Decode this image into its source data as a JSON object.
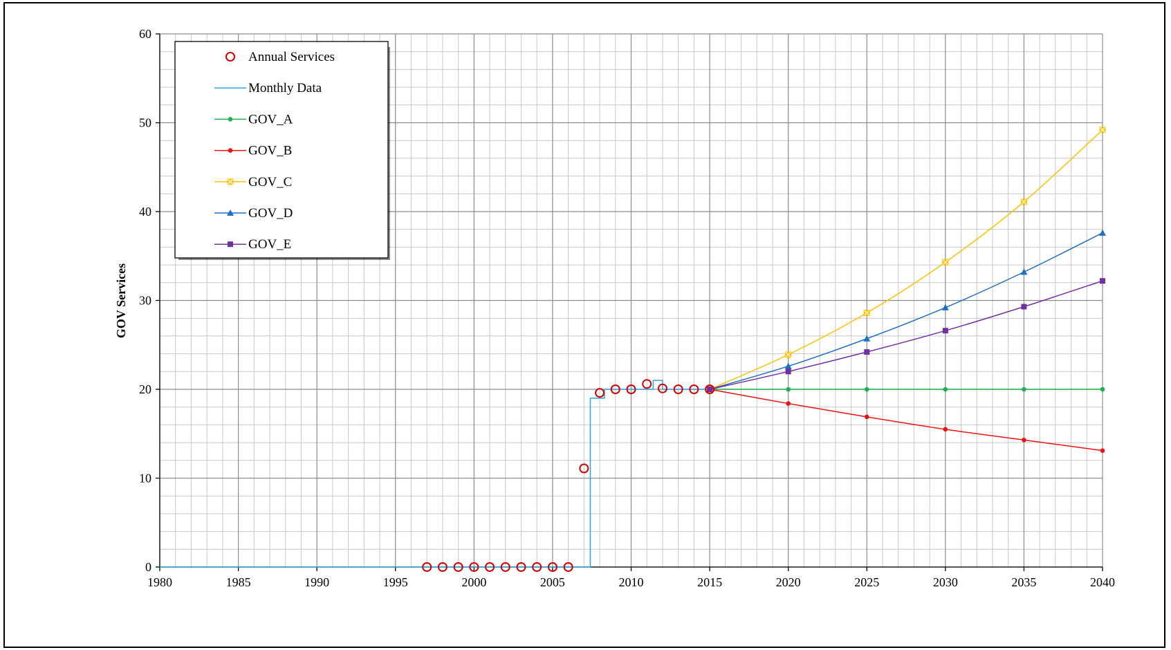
{
  "chart_data": {
    "type": "line",
    "title": "",
    "xlabel": "",
    "ylabel": "GOV Services",
    "xlim": [
      1980,
      2040
    ],
    "ylim": [
      0,
      60
    ],
    "x_ticks": [
      1980,
      1985,
      1990,
      1995,
      2000,
      2005,
      2010,
      2015,
      2020,
      2025,
      2030,
      2035,
      2040
    ],
    "y_ticks": [
      0,
      10,
      20,
      30,
      40,
      50,
      60
    ],
    "grid": true,
    "legend_position": "top-left",
    "series": [
      {
        "name": "Annual Services",
        "style": "markers",
        "marker": "open-circle",
        "color": "#d40000",
        "x": [
          1997,
          1998,
          1999,
          2000,
          2001,
          2002,
          2003,
          2004,
          2005,
          2006,
          2007,
          2008,
          2009,
          2010,
          2011,
          2012,
          2013,
          2014,
          2015
        ],
        "y": [
          0,
          0,
          0,
          0,
          0,
          0,
          0,
          0,
          0,
          0,
          11.1,
          19.6,
          20,
          20,
          20.6,
          20.1,
          20,
          20,
          20
        ]
      },
      {
        "name": "Monthly Data",
        "style": "step",
        "marker": "none",
        "color": "#2aa5dc",
        "x": [
          1980,
          2007.4,
          2007.4,
          2008.3,
          2008.3,
          2011.4,
          2011.4,
          2012,
          2012,
          2015
        ],
        "y": [
          0,
          0,
          19,
          19,
          20,
          20,
          21,
          21,
          20,
          20
        ]
      },
      {
        "name": "GOV_A",
        "style": "line",
        "marker": "dot",
        "color": "#1faf50",
        "x": [
          2015,
          2020,
          2025,
          2030,
          2035,
          2040
        ],
        "y": [
          20,
          20,
          20,
          20,
          20,
          20
        ]
      },
      {
        "name": "GOV_B",
        "style": "line",
        "marker": "dot",
        "color": "#ee1111",
        "x": [
          2015,
          2020,
          2025,
          2030,
          2035,
          2040
        ],
        "y": [
          20,
          18.4,
          16.9,
          15.5,
          14.3,
          13.1
        ]
      },
      {
        "name": "GOV_C",
        "style": "line",
        "marker": "x-square",
        "color": "#ffc000",
        "x": [
          2015,
          2020,
          2025,
          2030,
          2035,
          2040
        ],
        "y": [
          20,
          23.9,
          28.6,
          34.3,
          41.1,
          49.2
        ]
      },
      {
        "name": "GOV_D",
        "style": "line",
        "marker": "triangle",
        "color": "#1f6fbf",
        "x": [
          2015,
          2020,
          2025,
          2030,
          2035,
          2040
        ],
        "y": [
          20,
          22.6,
          25.7,
          29.2,
          33.2,
          37.6
        ]
      },
      {
        "name": "GOV_E",
        "style": "line",
        "marker": "square",
        "color": "#7030a0",
        "x": [
          2015,
          2020,
          2025,
          2030,
          2035,
          2040
        ],
        "y": [
          20,
          22,
          24.2,
          26.6,
          29.3,
          32.2
        ]
      }
    ]
  }
}
